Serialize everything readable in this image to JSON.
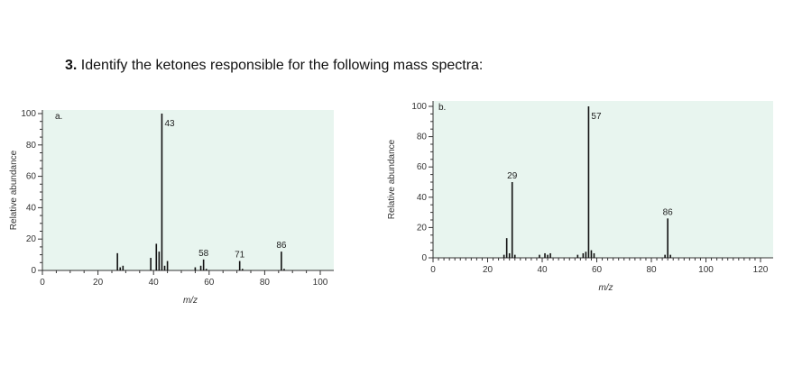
{
  "question": {
    "number": "3.",
    "text": "Identify the ketones responsible for the following mass spectra:"
  },
  "colors": {
    "plot_background": "#e8f5ef",
    "bars": "#111111",
    "page": "#ffffff"
  },
  "chart_data": [
    {
      "type": "bar",
      "panel_label": "a.",
      "xlabel": "m/z",
      "ylabel": "Relative abundance",
      "xlim": [
        0,
        100
      ],
      "ylim": [
        0,
        100
      ],
      "x_ticks": [
        "0",
        "20",
        "40",
        "60",
        "80",
        "100"
      ],
      "y_ticks": [
        "0",
        "20",
        "40",
        "60",
        "80",
        "100"
      ],
      "grid": false,
      "peaks": [
        {
          "x": 27,
          "y": 11
        },
        {
          "x": 28,
          "y": 2
        },
        {
          "x": 29,
          "y": 3
        },
        {
          "x": 39,
          "y": 8
        },
        {
          "x": 41,
          "y": 17
        },
        {
          "x": 42,
          "y": 12
        },
        {
          "x": 43,
          "y": 100
        },
        {
          "x": 44,
          "y": 3
        },
        {
          "x": 45,
          "y": 6
        },
        {
          "x": 55,
          "y": 2
        },
        {
          "x": 57,
          "y": 3
        },
        {
          "x": 58,
          "y": 7
        },
        {
          "x": 59,
          "y": 1
        },
        {
          "x": 71,
          "y": 6
        },
        {
          "x": 72,
          "y": 1
        },
        {
          "x": 86,
          "y": 12
        },
        {
          "x": 87,
          "y": 1
        }
      ],
      "peak_labels": [
        {
          "x": 43,
          "text": "43"
        },
        {
          "x": 58,
          "text": "58"
        },
        {
          "x": 71,
          "text": "71"
        },
        {
          "x": 86,
          "text": "86"
        }
      ]
    },
    {
      "type": "bar",
      "panel_label": "b.",
      "xlabel": "m/z",
      "ylabel": "Relative abundance",
      "xlim": [
        0,
        120
      ],
      "ylim": [
        0,
        100
      ],
      "x_ticks": [
        "0",
        "20",
        "40",
        "60",
        "80",
        "100",
        "120"
      ],
      "y_ticks": [
        "0",
        "20",
        "40",
        "60",
        "80",
        "100"
      ],
      "grid": false,
      "peaks": [
        {
          "x": 26,
          "y": 2
        },
        {
          "x": 27,
          "y": 13
        },
        {
          "x": 28,
          "y": 3
        },
        {
          "x": 29,
          "y": 50
        },
        {
          "x": 30,
          "y": 2
        },
        {
          "x": 39,
          "y": 2
        },
        {
          "x": 41,
          "y": 3
        },
        {
          "x": 42,
          "y": 2
        },
        {
          "x": 43,
          "y": 3
        },
        {
          "x": 53,
          "y": 2
        },
        {
          "x": 55,
          "y": 3
        },
        {
          "x": 56,
          "y": 4
        },
        {
          "x": 57,
          "y": 100
        },
        {
          "x": 58,
          "y": 5
        },
        {
          "x": 59,
          "y": 3
        },
        {
          "x": 85,
          "y": 2
        },
        {
          "x": 86,
          "y": 26
        },
        {
          "x": 87,
          "y": 2
        }
      ],
      "peak_labels": [
        {
          "x": 29,
          "text": "29"
        },
        {
          "x": 57,
          "text": "57"
        },
        {
          "x": 86,
          "text": "86"
        }
      ]
    }
  ]
}
